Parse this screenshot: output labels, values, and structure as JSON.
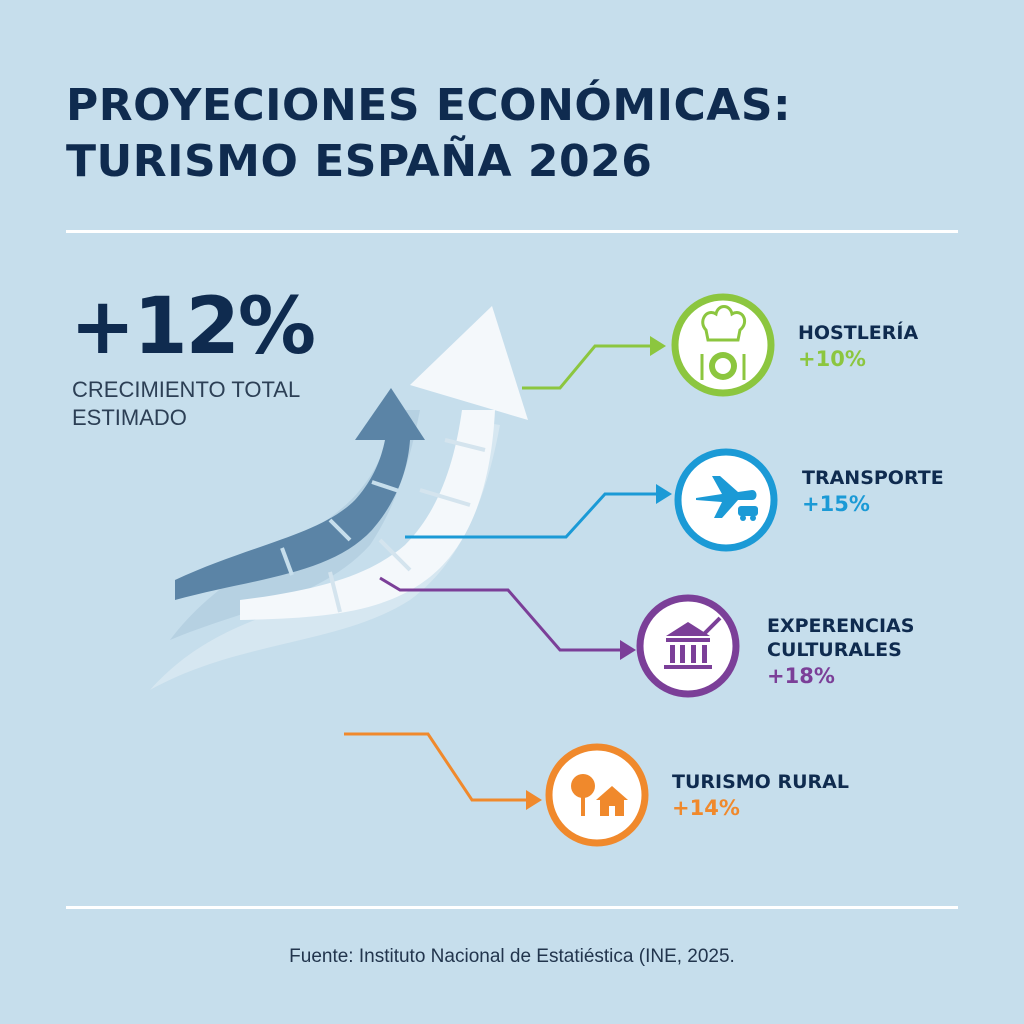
{
  "title": {
    "line1": "PROYECIONES ECONÓMICAS:",
    "line2": "TURISMO ESPAÑA 2026"
  },
  "headline": {
    "value": "+12%",
    "label_line1": "CRECIMIENTO TOTAL",
    "label_line2": "ESTIMADO"
  },
  "categories": [
    {
      "name": "HOSTLERÍA",
      "value": "+10%",
      "color": "#8cc63f",
      "icon": "chef-hat-plate-icon"
    },
    {
      "name": "TRANSPORTE",
      "value": "+15%",
      "color": "#1b9ad6",
      "icon": "plane-car-icon"
    },
    {
      "name_line1": "EXPERENCIAS",
      "name_line2": "CULTURALES",
      "value": "+18%",
      "color": "#7b3f98",
      "icon": "museum-brush-icon"
    },
    {
      "name": "TURISMO RURAL",
      "value": "+14%",
      "color": "#f0892c",
      "icon": "tree-house-icon"
    }
  ],
  "source": "Fuente: Instituto Nacional de Estatiéstica (INE, 2025."
}
